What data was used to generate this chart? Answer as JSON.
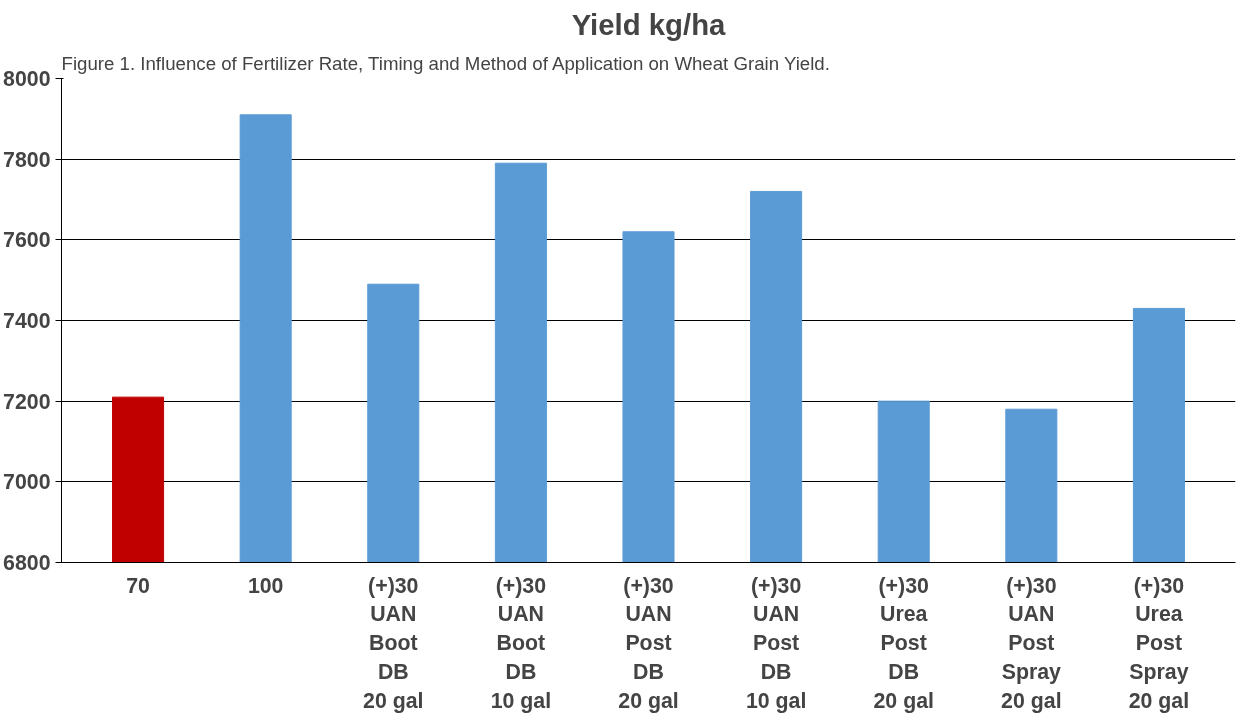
{
  "chart_data": {
    "type": "bar",
    "title": "Yield kg/ha",
    "annotations": [
      "Figure 1. Influence of Fertilizer Rate, Timing and Method of Application on Wheat Grain Yield."
    ],
    "categories": [
      "70",
      "100",
      "(+)30\nUAN\nBoot\nDB\n20 gal",
      "(+)30\nUAN\nBoot\nDB\n10 gal",
      "(+)30\nUAN\nPost\nDB\n20 gal",
      "(+)30\nUAN\nPost\nDB\n10 gal",
      "(+)30\nUrea\nPost\nDB\n20 gal",
      "(+)30\nUAN\nPost\nSpray\n20 gal",
      "(+)30\nUrea\nPost\nSpray\n20 gal"
    ],
    "values": [
      7210,
      7910,
      7490,
      7790,
      7620,
      7720,
      7200,
      7180,
      7430
    ],
    "colors": [
      "#c00000",
      "#5b9bd5",
      "#5b9bd5",
      "#5b9bd5",
      "#5b9bd5",
      "#5b9bd5",
      "#5b9bd5",
      "#5b9bd5",
      "#5b9bd5"
    ],
    "ylim": [
      6800,
      8000
    ],
    "yticks": [
      6800,
      7000,
      7200,
      7400,
      7600,
      7800,
      8000
    ],
    "grid": "y"
  }
}
